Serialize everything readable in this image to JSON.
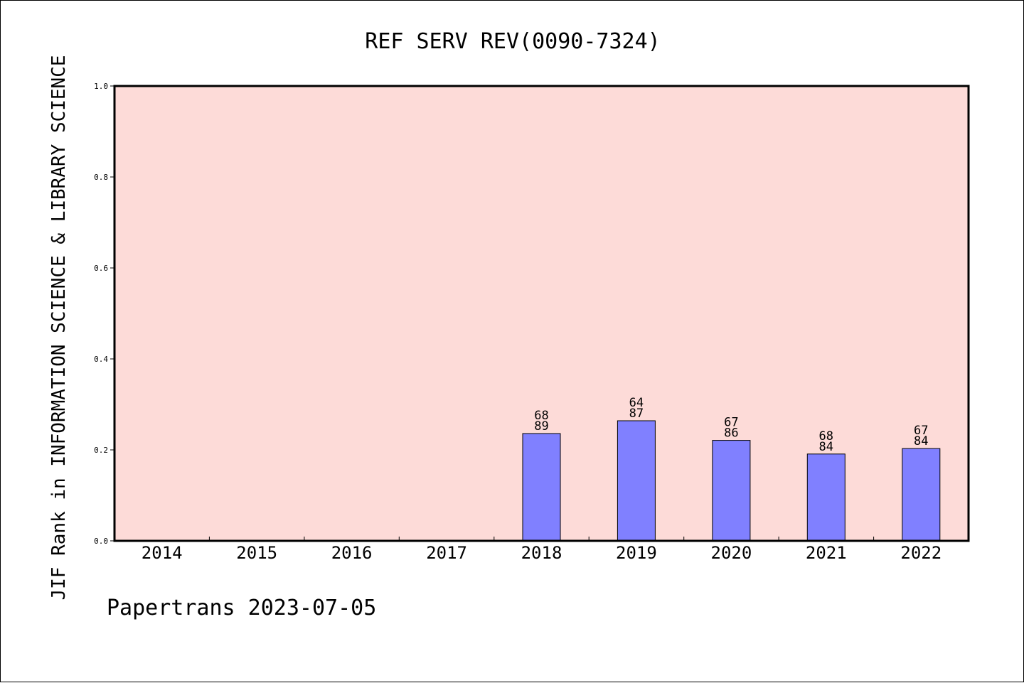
{
  "chart_data": {
    "type": "bar",
    "title": "REF SERV REV(0090-7324)",
    "ylabel": "JIF Rank in INFORMATION SCIENCE & LIBRARY SCIENCE",
    "xlabel": "",
    "categories": [
      "2014",
      "2015",
      "2016",
      "2017",
      "2018",
      "2019",
      "2020",
      "2021",
      "2022"
    ],
    "values": [
      null,
      null,
      null,
      null,
      0.236,
      0.264,
      0.221,
      0.191,
      0.203
    ],
    "rank_labels": [
      null,
      null,
      null,
      null,
      [
        "68",
        "89"
      ],
      [
        "64",
        "87"
      ],
      [
        "67",
        "86"
      ],
      [
        "68",
        "84"
      ],
      [
        "67",
        "84"
      ]
    ],
    "ylim": [
      0,
      1.0
    ],
    "yticks": [
      "0.0",
      "0.2",
      "0.4",
      "0.6",
      "0.8",
      "1.0"
    ],
    "grid": false,
    "colors": {
      "plot_background": "#fddbd8",
      "bar_fill": "#8080ff",
      "axis": "#000000"
    }
  },
  "footer": "Papertrans 2023-07-05"
}
